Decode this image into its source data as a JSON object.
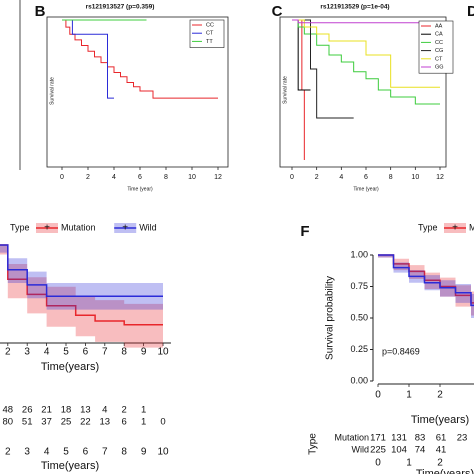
{
  "chart_data": [
    {
      "type": "km",
      "label": "B",
      "title": "rs121913527 (p=0.359)",
      "xlabel": "Time (year)",
      "ylabel": "Survival rate",
      "xlim": [
        0,
        12
      ],
      "xticks": [
        0,
        2,
        4,
        6,
        8,
        10,
        12
      ],
      "ylim": [
        0,
        1
      ],
      "legend": "top-right",
      "series": [
        {
          "name": "CC",
          "color": "#e8262b",
          "x": [
            0,
            0.3,
            0.6,
            1,
            1.5,
            2,
            2.5,
            3,
            3.5,
            4,
            4.5,
            5,
            5.5,
            6,
            7,
            12
          ],
          "values": [
            1,
            0.95,
            0.9,
            0.86,
            0.82,
            0.78,
            0.74,
            0.7,
            0.67,
            0.63,
            0.6,
            0.56,
            0.53,
            0.5,
            0.45,
            0.45
          ]
        },
        {
          "name": "CT",
          "color": "#2b2bd8",
          "x": [
            0,
            0.8,
            3.5,
            4
          ],
          "values": [
            1,
            0.9,
            0.45,
            0.45
          ]
        },
        {
          "name": "TT",
          "color": "#3ccc3c",
          "x": [
            0,
            6.5
          ],
          "values": [
            1,
            1
          ]
        }
      ]
    },
    {
      "type": "km",
      "label": "C",
      "title": "rs121913529 (p=1e-04)",
      "xlabel": "Time (year)",
      "ylabel": "Survival rate",
      "xlim": [
        0,
        12
      ],
      "xticks": [
        0,
        2,
        4,
        6,
        8,
        10,
        12
      ],
      "ylim": [
        0,
        1
      ],
      "legend": "top-right",
      "series": [
        {
          "name": "AA",
          "color": "#e8262b",
          "x": [
            0,
            0.8,
            1
          ],
          "values": [
            1,
            0.5,
            0
          ]
        },
        {
          "name": "CA",
          "color": "#000000",
          "x": [
            0,
            0.5,
            1.5
          ],
          "values": [
            1,
            0.5,
            0.5
          ]
        },
        {
          "name": "CC",
          "color": "#3ccc3c",
          "x": [
            0,
            0.5,
            1,
            2,
            3,
            4,
            5,
            6,
            7,
            8,
            10,
            12
          ],
          "values": [
            1,
            0.95,
            0.9,
            0.82,
            0.75,
            0.7,
            0.63,
            0.58,
            0.5,
            0.45,
            0.4,
            0.4
          ]
        },
        {
          "name": "CG",
          "color": "#222222",
          "x": [
            0,
            1.5,
            2,
            5
          ],
          "values": [
            1,
            0.65,
            0.3,
            0.3
          ]
        },
        {
          "name": "CT",
          "color": "#e8e020",
          "x": [
            0,
            1,
            2,
            3,
            6,
            8,
            12
          ],
          "values": [
            1,
            0.95,
            0.9,
            0.85,
            0.75,
            0.52,
            0.52
          ]
        },
        {
          "name": "GG",
          "color": "#c040d0",
          "x": [
            0,
            0.5,
            12
          ],
          "values": [
            1,
            0.98,
            0.98
          ]
        }
      ]
    },
    {
      "type": "km-ci",
      "legend_title": "Type",
      "xlabel": "Time(years)",
      "xlim": [
        0,
        10
      ],
      "xticks": [
        2,
        3,
        4,
        5,
        6,
        7,
        8,
        9,
        10
      ],
      "ylim": [
        0.5,
        1
      ],
      "series": [
        {
          "name": "Mutation",
          "color": "#e8262b",
          "x": [
            0,
            2,
            3,
            4,
            5.5,
            6.5,
            8,
            10
          ],
          "values": [
            1,
            0.82,
            0.74,
            0.68,
            0.63,
            0.6,
            0.58,
            0.58
          ],
          "lower": [
            0.95,
            0.72,
            0.64,
            0.57,
            0.52,
            0.49,
            0.46,
            0.46
          ],
          "upper": [
            1,
            0.9,
            0.83,
            0.78,
            0.73,
            0.71,
            0.69,
            0.69
          ]
        },
        {
          "name": "Wild",
          "color": "#2b2bd8",
          "x": [
            0,
            2,
            3,
            4,
            10
          ],
          "values": [
            1,
            0.87,
            0.79,
            0.73,
            0.73
          ],
          "lower": [
            0.96,
            0.8,
            0.72,
            0.66,
            0.66
          ],
          "upper": [
            1,
            0.93,
            0.86,
            0.8,
            0.8
          ]
        }
      ],
      "risk_table": {
        "xlabel": "Time(years)",
        "rows": [
          [
            48,
            26,
            21,
            18,
            13,
            4,
            2,
            1,
            null
          ],
          [
            80,
            51,
            37,
            25,
            22,
            13,
            6,
            1,
            0
          ]
        ]
      }
    },
    {
      "type": "km-ci",
      "label": "F",
      "legend_title": "Type",
      "ylabel": "Survival probability",
      "xlabel": "Time(years)",
      "annotation": "p=0.8469",
      "xlim": [
        0,
        3
      ],
      "xticks": [
        0,
        1,
        2
      ],
      "ylim": [
        0,
        1
      ],
      "yticks": [
        {
          "value": 0,
          "label": "0.00"
        },
        {
          "value": 0.25,
          "label": "0.25"
        },
        {
          "value": 0.5,
          "label": "0.50"
        },
        {
          "value": 0.75,
          "label": "0.75"
        },
        {
          "value": 1,
          "label": "1.00"
        }
      ],
      "series": [
        {
          "name": "Mutation",
          "color": "#e8262b",
          "x": [
            0,
            0.5,
            1,
            1.5,
            2,
            2.5,
            3,
            3.2
          ],
          "values": [
            1,
            0.93,
            0.87,
            0.8,
            0.75,
            0.68,
            0.62,
            0.6
          ],
          "lower": [
            0.98,
            0.88,
            0.81,
            0.73,
            0.67,
            0.59,
            0.52,
            0.49
          ],
          "upper": [
            1,
            0.97,
            0.92,
            0.86,
            0.82,
            0.76,
            0.71,
            0.7
          ]
        },
        {
          "name": "Wild",
          "color": "#2b2bd8",
          "x": [
            0,
            0.5,
            1,
            1.5,
            2,
            2.5,
            3,
            3.2
          ],
          "values": [
            1,
            0.9,
            0.83,
            0.78,
            0.74,
            0.7,
            0.6,
            0.55
          ],
          "lower": [
            0.98,
            0.86,
            0.78,
            0.72,
            0.67,
            0.62,
            0.5,
            0.44
          ],
          "upper": [
            1,
            0.94,
            0.88,
            0.84,
            0.8,
            0.77,
            0.69,
            0.66
          ]
        }
      ],
      "risk_table": {
        "ylabel": "Type",
        "xlabel": "Time(years)",
        "xticks": [
          0,
          1,
          2
        ],
        "rows": [
          [
            171,
            131,
            83,
            61,
            23
          ],
          [
            225,
            104,
            74,
            41
          ]
        ]
      }
    }
  ],
  "other_labels": [
    "D"
  ]
}
